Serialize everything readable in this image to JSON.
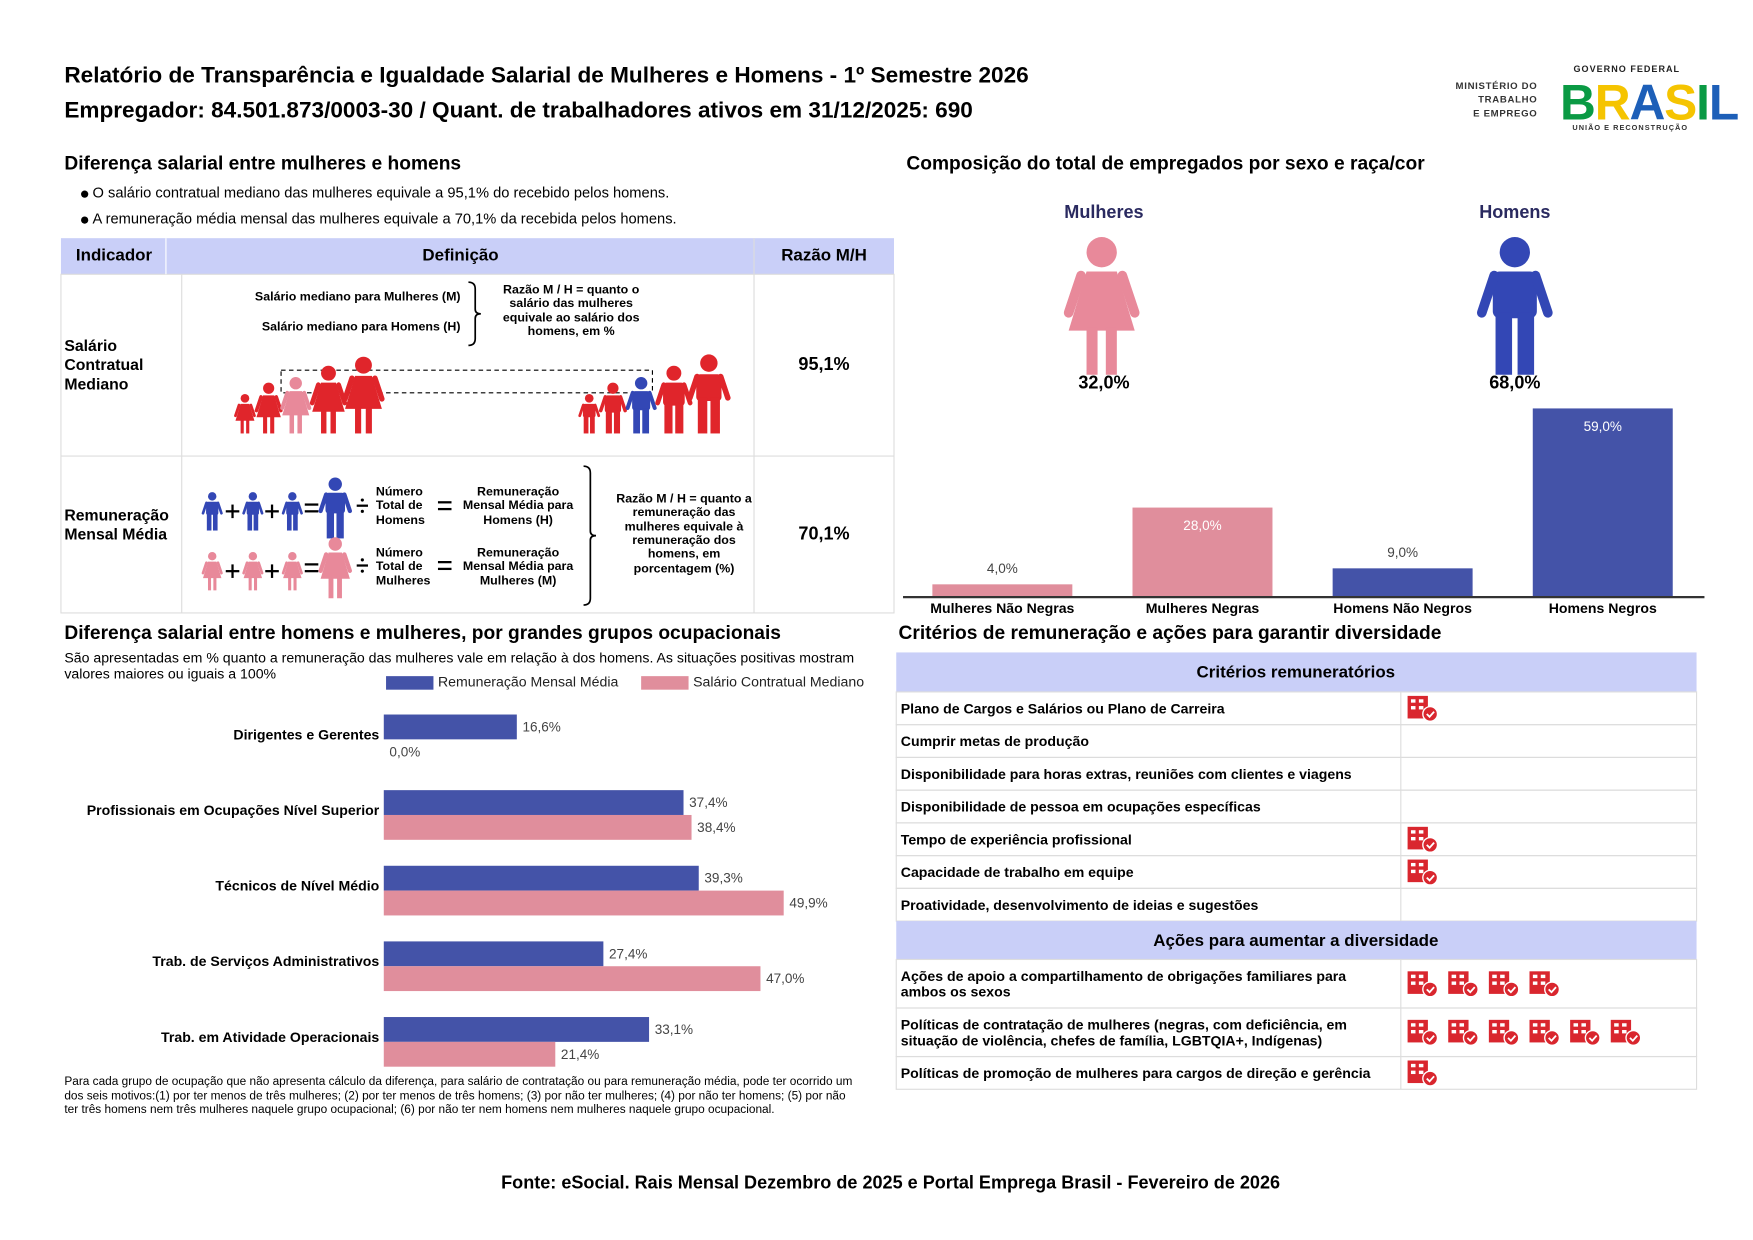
{
  "header": {
    "title": "Relatório de Transparência e Igualdade Salarial de Mulheres e Homens - 1º Semestre 2026",
    "subtitle": "Empregador: 84.501.873/0003-30 / Quant. de trabalhadores ativos em 31/12/2025: 690"
  },
  "logo": {
    "ministry": [
      "MINISTÉRIO DO",
      "TRABALHO",
      "E EMPREGO"
    ],
    "government": "GOVERNO FEDERAL",
    "brand": "BRASIL",
    "motto": "UNIÃO E RECONSTRUÇÃO"
  },
  "salary_gap": {
    "title": "Diferença salarial entre mulheres e homens",
    "bullets": [
      "O salário contratual mediano das mulheres equivale a 95,1% do recebido pelos homens.",
      "A remuneração média mensal das mulheres equivale a 70,1% da recebida pelos homens."
    ],
    "table": {
      "headers": [
        "Indicador",
        "Definição",
        "Razão M/H"
      ],
      "rows": [
        {
          "indicator": "Salário Contratual Mediano",
          "definition": {
            "women": "Salário mediano para Mulheres (M)",
            "men": "Salário mediano para Homens (H)",
            "ratio": "Razão M / H = quanto o salário das mulheres equivale ao salário dos homens, em %"
          },
          "ratio": "95,1%"
        },
        {
          "indicator": "Remuneração Mensal Média",
          "definition": {
            "men_count": "Número Total de Homens",
            "men_mean": "Remuneração Mensal Média para Homens (H)",
            "women_count": "Número Total de Mulheres",
            "women_mean": "Remuneração Mensal Média para Mulheres (M)",
            "ratio": "Razão M / H = quanto a remuneração das mulheres equivale à remuneração dos homens, em porcentagem (%)"
          },
          "ratio": "70,1%"
        }
      ]
    }
  },
  "composition": {
    "groups": [
      {
        "label": "Mulheres",
        "share": "32,0%",
        "color": "#e8899a"
      },
      {
        "label": "Homens",
        "share": "68,0%",
        "color": "#3347b5"
      }
    ]
  },
  "chart_data": [
    {
      "type": "bar",
      "title": "Composição do total de empregados por sexo e raça/cor",
      "categories": [
        "Mulheres Não Negras",
        "Mulheres Negras",
        "Homens Não Negros",
        "Homens Negros"
      ],
      "values": [
        4.0,
        28.0,
        9.0,
        59.0
      ],
      "value_labels": [
        "4,0%",
        "28,0%",
        "9,0%",
        "59,0%"
      ],
      "colors": [
        "#e08e9c",
        "#e08e9c",
        "#4453a8",
        "#4453a8"
      ],
      "ylim": [
        0,
        60
      ]
    },
    {
      "type": "barh",
      "title": "Diferença salarial entre homens e mulheres, por grandes grupos ocupacionais",
      "subtitle": "São apresentadas em % quanto a remuneração das mulheres vale em relação à dos homens. As situações positivas mostram valores maiores ou iguais a 100%",
      "categories": [
        "Dirigentes e Gerentes",
        "Profissionais em Ocupações Nível Superior",
        "Técnicos de Nível Médio",
        "Trab. de Serviços Administrativos",
        "Trab. em Atividade Operacionais"
      ],
      "series": [
        {
          "name": "Remuneração Mensal Média",
          "color": "#4453a8",
          "values": [
            16.6,
            37.4,
            39.3,
            27.4,
            33.1
          ],
          "value_labels": [
            "16,6%",
            "37,4%",
            "39,3%",
            "27,4%",
            "33,1%"
          ]
        },
        {
          "name": "Salário Contratual Mediano",
          "color": "#e08e9c",
          "values": [
            0.0,
            38.4,
            49.9,
            47.0,
            21.4
          ],
          "value_labels": [
            "0,0%",
            "38,4%",
            "49,9%",
            "47,0%",
            "21,4%"
          ]
        }
      ],
      "xlim": [
        0,
        50
      ],
      "footnote": "Para cada grupo de ocupação que não apresenta cálculo da diferença, para salário de contratação ou para remuneração média, pode ter ocorrido um dos seis motivos:(1) por ter menos de três mulheres; (2) por ter menos de três homens; (3) por não ter mulheres; (4) por não ter homens; (5) por não ter três homens nem três mulheres naquele grupo ocupacional; (6) por não ter nem homens nem mulheres naquele grupo ocupacional."
    }
  ],
  "criteria": {
    "title": "Critérios de remuneração e ações para garantir diversidade",
    "sections": [
      {
        "title": "Critérios remuneratórios",
        "rows": [
          {
            "label": "Plano de Cargos e Salários ou Plano de Carreira",
            "icons": 1
          },
          {
            "label": "Cumprir metas de produção",
            "icons": 0
          },
          {
            "label": "Disponibilidade para horas extras, reuniões com clientes e viagens",
            "icons": 0
          },
          {
            "label": "Disponibilidade de pessoa em ocupações específicas",
            "icons": 0
          },
          {
            "label": "Tempo de experiência profissional",
            "icons": 1
          },
          {
            "label": "Capacidade de trabalho em equipe",
            "icons": 1
          },
          {
            "label": "Proatividade, desenvolvimento de ideias e sugestões",
            "icons": 0
          }
        ]
      },
      {
        "title": "Ações para aumentar a diversidade",
        "rows": [
          {
            "label": "Ações de apoio a compartilhamento de obrigações familiares para ambos os sexos",
            "icons": 4
          },
          {
            "label": "Políticas de contratação de mulheres (negras, com deficiência, em situação de violência, chefes de família, LGBTQIA+, Indígenas)",
            "icons": 6
          },
          {
            "label": "Políticas de promoção de mulheres para cargos de direção e gerência",
            "icons": 1
          }
        ]
      }
    ]
  },
  "footer": "Fonte: eSocial. Rais Mensal Dezembro de 2025 e Portal Emprega Brasil - Fevereiro de 2026"
}
